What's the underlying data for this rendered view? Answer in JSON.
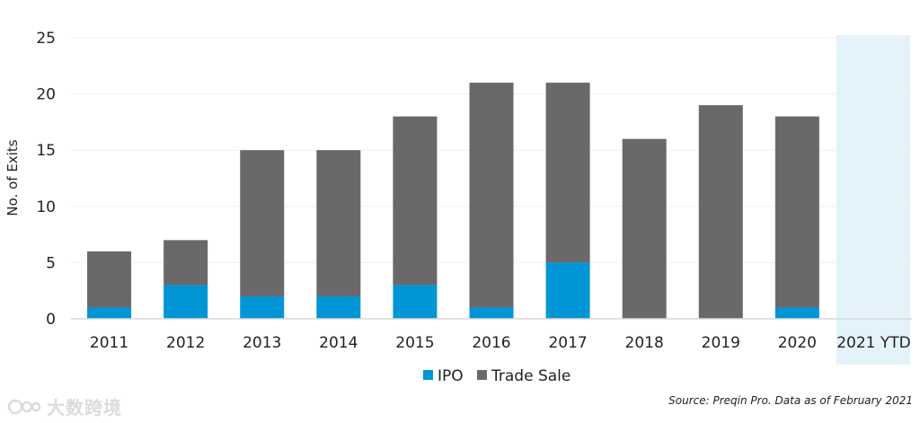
{
  "chart_data": {
    "type": "bar",
    "stacked": true,
    "title": "",
    "xlabel": "",
    "ylabel": "No. of Exits",
    "ylim": [
      0,
      25
    ],
    "yticks": [
      0,
      5,
      10,
      15,
      20,
      25
    ],
    "categories": [
      "2011",
      "2012",
      "2013",
      "2014",
      "2015",
      "2016",
      "2017",
      "2018",
      "2019",
      "2020",
      "2021 YTD"
    ],
    "highlight_category": "2021 YTD",
    "series": [
      {
        "name": "IPO",
        "color": "#0096d6",
        "values": [
          1,
          3,
          2,
          2,
          3,
          1,
          5,
          0,
          0,
          1,
          0
        ]
      },
      {
        "name": "Trade Sale",
        "color": "#6a6868",
        "values": [
          5,
          4,
          13,
          13,
          15,
          20,
          16,
          16,
          19,
          17,
          0
        ]
      }
    ],
    "legend_position": "bottom-center",
    "grid": true
  },
  "colors": {
    "highlight_band": "#e4f2fa",
    "grid": "#f0f0f0",
    "axis": "#d9d9d9"
  },
  "source_note": "Source: Preqin Pro. Data as of February 2021",
  "watermark_text": "大数跨境"
}
